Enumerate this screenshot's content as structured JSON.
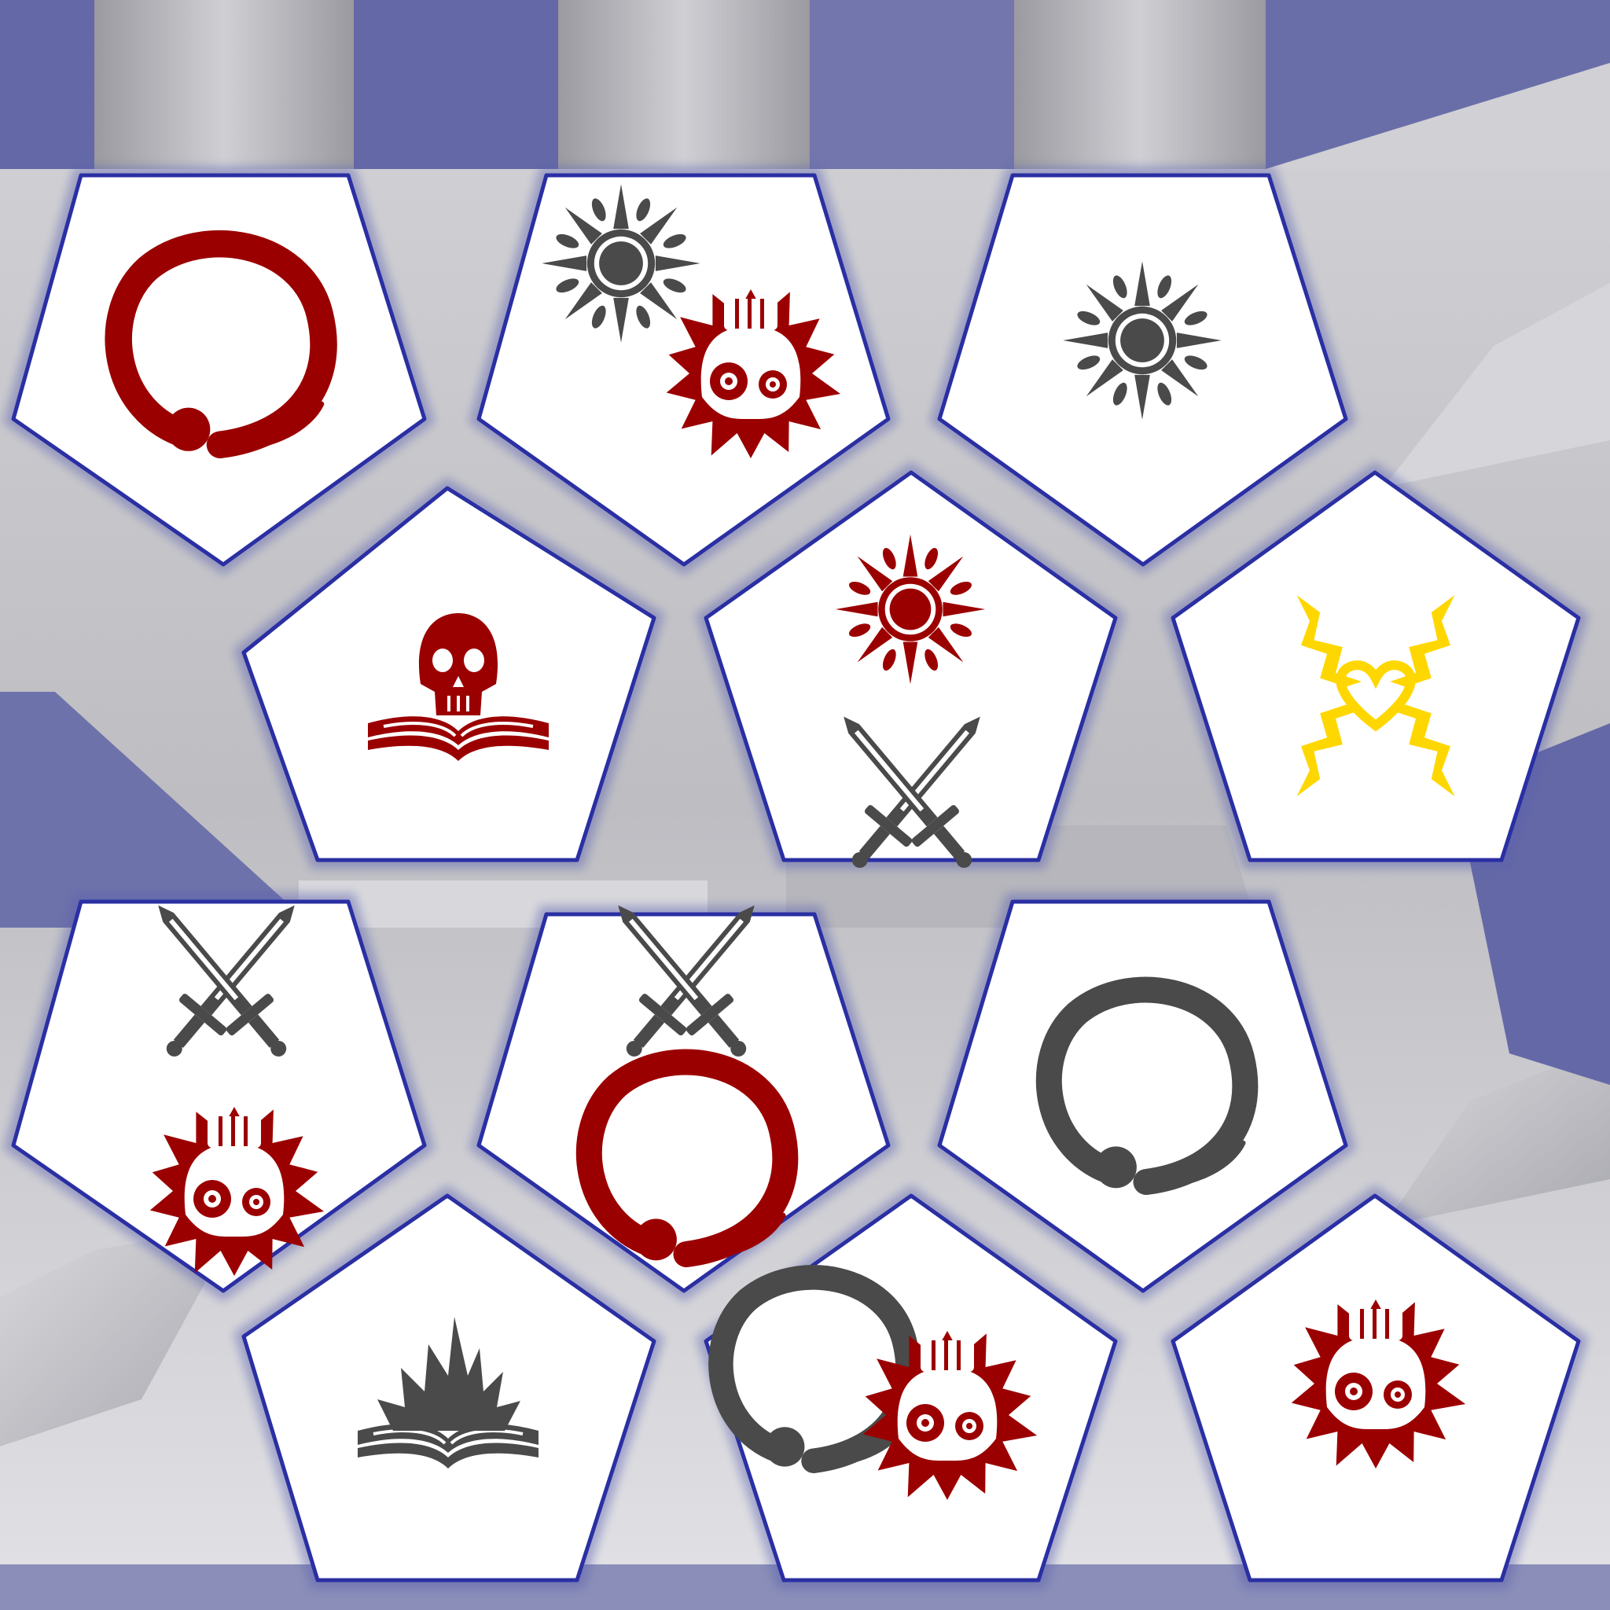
{
  "board": {
    "name": "pentagon-tile-board",
    "colors": {
      "background_gray": "#bdbdc3",
      "background_blue": "#6468a6",
      "tile_fill": "#ffffff",
      "tile_border": "#2a2fa3",
      "red": "#9b0000",
      "gray": "#4a4a4a",
      "yellow": "#ffd700"
    },
    "tiles": [
      {
        "name": "tile-1",
        "icons": [
          {
            "name": "enso-circle-icon",
            "color": "red"
          }
        ]
      },
      {
        "name": "tile-2",
        "icons": [
          {
            "name": "sun-icon",
            "color": "gray"
          },
          {
            "name": "splat-skull-icon",
            "color": "red"
          }
        ]
      },
      {
        "name": "tile-3",
        "icons": [
          {
            "name": "sun-icon",
            "color": "gray"
          }
        ]
      },
      {
        "name": "tile-4",
        "icons": [
          {
            "name": "skull-book-icon",
            "color": "red"
          }
        ]
      },
      {
        "name": "tile-5",
        "icons": [
          {
            "name": "sun-icon",
            "color": "red"
          },
          {
            "name": "crossed-swords-icon",
            "color": "gray"
          }
        ]
      },
      {
        "name": "tile-6",
        "icons": [
          {
            "name": "lightning-heart-icon",
            "color": "yellow"
          }
        ]
      },
      {
        "name": "tile-7",
        "icons": [
          {
            "name": "crossed-swords-icon",
            "color": "gray"
          },
          {
            "name": "splat-skull-icon",
            "color": "red"
          }
        ]
      },
      {
        "name": "tile-8",
        "icons": [
          {
            "name": "crossed-swords-icon",
            "color": "gray"
          },
          {
            "name": "enso-circle-icon",
            "color": "red"
          }
        ]
      },
      {
        "name": "tile-9",
        "icons": [
          {
            "name": "enso-circle-icon",
            "color": "gray"
          }
        ]
      },
      {
        "name": "tile-10",
        "icons": [
          {
            "name": "flame-book-icon",
            "color": "gray"
          }
        ]
      },
      {
        "name": "tile-11",
        "icons": [
          {
            "name": "enso-circle-icon",
            "color": "gray"
          },
          {
            "name": "splat-skull-icon",
            "color": "red"
          }
        ]
      },
      {
        "name": "tile-12",
        "icons": [
          {
            "name": "splat-skull-icon",
            "color": "red"
          }
        ]
      }
    ]
  }
}
